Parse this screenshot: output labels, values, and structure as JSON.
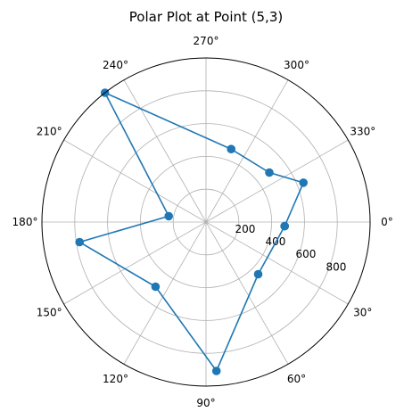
{
  "chart_data": {
    "type": "polar",
    "title": "Polar Plot at Point (5,3)",
    "theta_direction": "clockwise",
    "theta_zero": "right",
    "theta_unit": "degrees",
    "angle_ticks": [
      0,
      30,
      60,
      90,
      120,
      150,
      180,
      210,
      240,
      270,
      300,
      330
    ],
    "angle_tick_labels": [
      "0°",
      "30°",
      "60°",
      "90°",
      "120°",
      "150°",
      "180°",
      "210°",
      "240°",
      "270°",
      "300°",
      "330°"
    ],
    "r_ticks": [
      200,
      400,
      600,
      800
    ],
    "r_tick_labels": [
      "200",
      "400",
      "600",
      "800"
    ],
    "rlim": [
      0,
      1000
    ],
    "grid": true,
    "series": [
      {
        "color": "#1f77b4",
        "marker": "circle",
        "points": [
          {
            "theta": 3,
            "r": 480
          },
          {
            "theta": 45,
            "r": 450
          },
          {
            "theta": 86,
            "r": 910
          },
          {
            "theta": 128,
            "r": 500
          },
          {
            "theta": 171,
            "r": 780
          },
          {
            "theta": 189,
            "r": 230
          },
          {
            "theta": 232,
            "r": 1000
          },
          {
            "theta": 289,
            "r": 470
          },
          {
            "theta": 322,
            "r": 490
          },
          {
            "theta": 338,
            "r": 640
          },
          {
            "theta": 3,
            "r": 480
          }
        ]
      }
    ]
  }
}
